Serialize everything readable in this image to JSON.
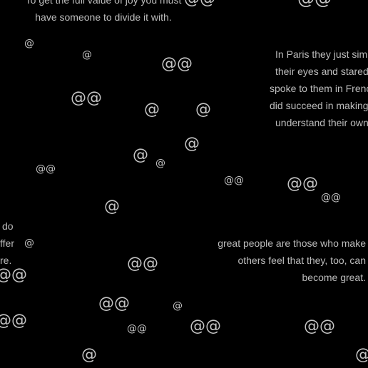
{
  "quotes": {
    "top_center": [
      "To get the full value of joy you must",
      "have someone to divide it with."
    ],
    "paris": [
      "In Paris they just simp",
      "their eyes and stared",
      "spoke to them in Frenc",
      "did succeed in making",
      "understand their own"
    ],
    "left_fragment": [
      "do",
      "ffer",
      "re."
    ],
    "great": [
      "great people are those who make",
      "others feel that they, too, can",
      "become great."
    ]
  },
  "glyphs": {
    "single": "@",
    "double": "@@"
  }
}
